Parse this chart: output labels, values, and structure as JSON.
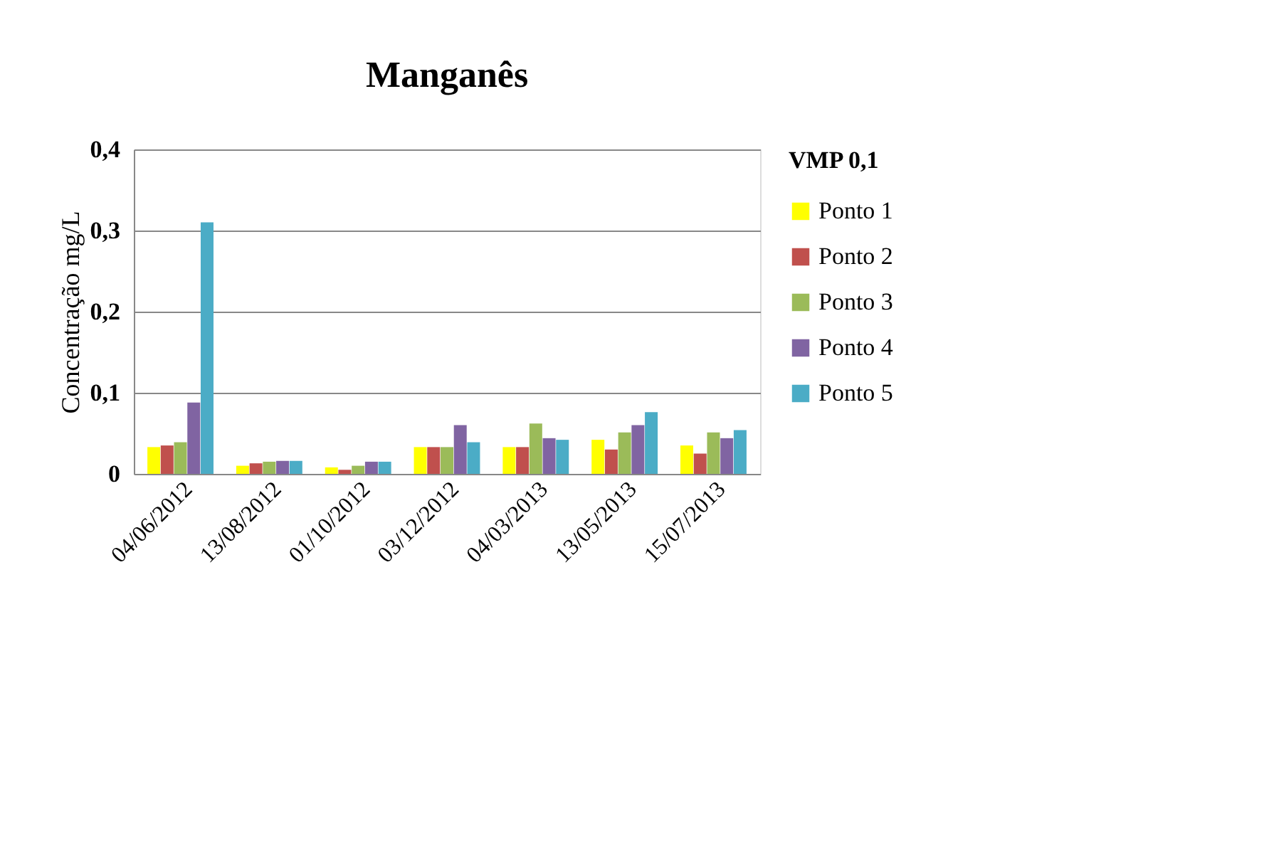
{
  "chart_data": {
    "type": "bar",
    "title": "Manganês",
    "ylabel": "Concentração mg/L",
    "legend_title": "VMP 0,1",
    "categories": [
      "04/06/2012",
      "13/08/2012",
      "01/10/2012",
      "03/12/2012",
      "04/03/2013",
      "13/05/2013",
      "15/07/2013"
    ],
    "series": [
      {
        "name": "Ponto 1",
        "color": "#ffff00",
        "values": [
          0.033,
          0.01,
          0.008,
          0.033,
          0.033,
          0.042,
          0.035
        ]
      },
      {
        "name": "Ponto 2",
        "color": "#c0504d",
        "values": [
          0.035,
          0.013,
          0.005,
          0.033,
          0.033,
          0.03,
          0.025
        ]
      },
      {
        "name": "Ponto 3",
        "color": "#9bbb59",
        "values": [
          0.039,
          0.015,
          0.01,
          0.033,
          0.062,
          0.051,
          0.051
        ]
      },
      {
        "name": "Ponto 4",
        "color": "#8064a2",
        "values": [
          0.088,
          0.016,
          0.015,
          0.06,
          0.044,
          0.06,
          0.044
        ]
      },
      {
        "name": "Ponto 5",
        "color": "#4bacc6",
        "values": [
          0.31,
          0.016,
          0.015,
          0.039,
          0.042,
          0.076,
          0.054
        ]
      }
    ],
    "ylim": [
      0,
      0.4
    ],
    "yticks": [
      {
        "value": 0,
        "label": "0"
      },
      {
        "value": 0.1,
        "label": "0,1"
      },
      {
        "value": 0.2,
        "label": "0,2"
      },
      {
        "value": 0.3,
        "label": "0,3"
      },
      {
        "value": 0.4,
        "label": "0,4"
      }
    ],
    "grid": "y",
    "legend": "right"
  }
}
